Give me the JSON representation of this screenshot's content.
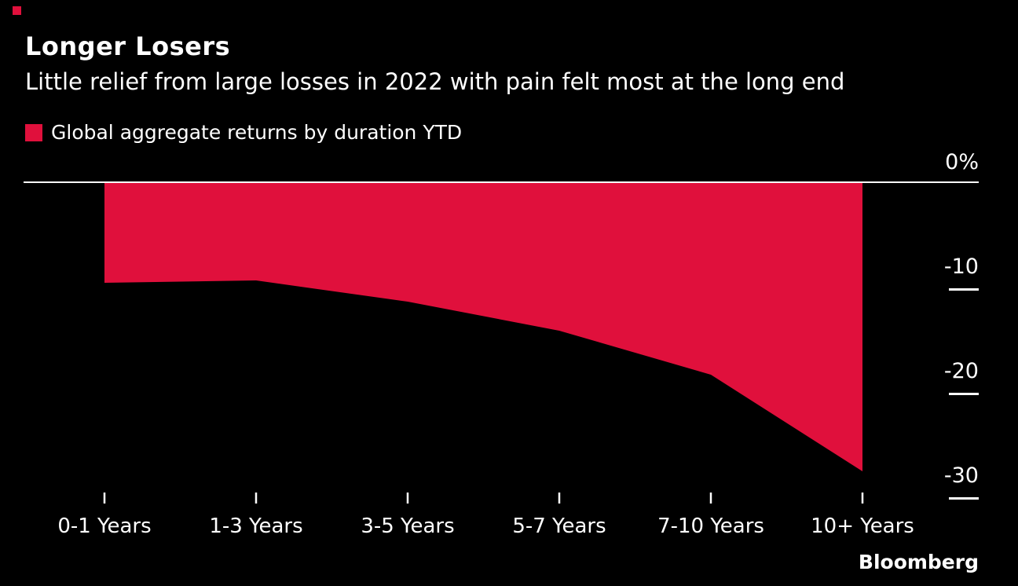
{
  "title": "Longer Losers",
  "subtitle": "Little relief from large losses in 2022 with pain felt most at the long end",
  "legend": {
    "label": "Global aggregate returns by duration YTD"
  },
  "branding": "Bloomberg",
  "colors": {
    "background": "#000000",
    "text": "#ffffff",
    "accent": "#e0103c",
    "axis": "#ffffff"
  },
  "chart_data": {
    "type": "area",
    "title": "Longer Losers",
    "subtitle": "Little relief from large losses in 2022 with pain felt most at the long end",
    "series_name": "Global aggregate returns by duration YTD",
    "categories": [
      "0-1 Years",
      "1-3 Years",
      "3-5 Years",
      "5-7 Years",
      "7-10 Years",
      "10+ Years"
    ],
    "values": [
      -9.6,
      -9.4,
      -11.4,
      -14.2,
      -18.4,
      -27.7
    ],
    "xlabel": "",
    "ylabel": "",
    "unit": "%",
    "ylim": [
      -32,
      0
    ],
    "grid": false,
    "legend_position": "top-left",
    "yticks": [
      {
        "label": "0%",
        "value": 0
      },
      {
        "label": "-10",
        "value": -10
      },
      {
        "label": "-20",
        "value": -20
      },
      {
        "label": "-30",
        "value": -30
      }
    ]
  }
}
